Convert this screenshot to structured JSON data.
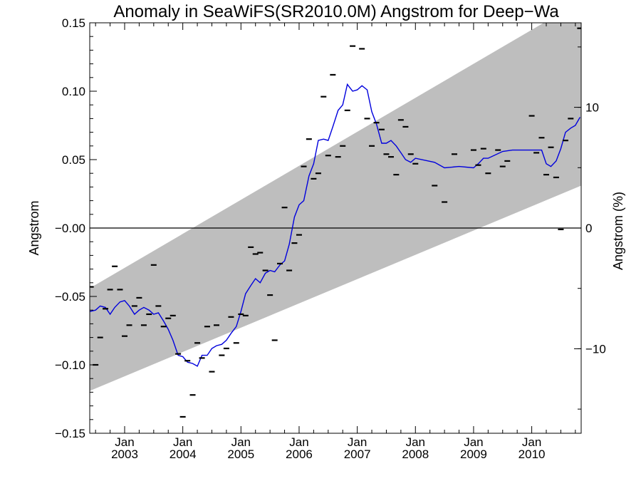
{
  "chart_data": {
    "type": "scatter",
    "title": "Anomaly in SeaWiFS(SR2010.0M) Angstrom for Deep−Wa",
    "ylabel": "Angstrom",
    "y2label": "Angstrom (%)",
    "xlim": [
      2002.4,
      2010.85
    ],
    "ylim": [
      -0.15,
      0.15
    ],
    "y2lim": [
      -17,
      17
    ],
    "yticks": [
      {
        "v": 0.15,
        "label": "0.15"
      },
      {
        "v": 0.1,
        "label": "0.10"
      },
      {
        "v": 0.05,
        "label": "0.05"
      },
      {
        "v": 0.0,
        "label": "−0.00"
      },
      {
        "v": -0.05,
        "label": "−0.05"
      },
      {
        "v": -0.1,
        "label": "−0.10"
      },
      {
        "v": -0.15,
        "label": "−0.15"
      }
    ],
    "y2ticks": [
      {
        "v": 10,
        "label": "10"
      },
      {
        "v": 0,
        "label": "0"
      },
      {
        "v": -10,
        "label": "−10"
      }
    ],
    "xticks": [
      {
        "v": 2003.0,
        "month": "Jan",
        "year": "2003"
      },
      {
        "v": 2004.0,
        "month": "Jan",
        "year": "2004"
      },
      {
        "v": 2005.0,
        "month": "Jan",
        "year": "2005"
      },
      {
        "v": 2006.0,
        "month": "Jan",
        "year": "2006"
      },
      {
        "v": 2007.0,
        "month": "Jan",
        "year": "2007"
      },
      {
        "v": 2008.0,
        "month": "Jan",
        "year": "2008"
      },
      {
        "v": 2009.0,
        "month": "Jan",
        "year": "2009"
      },
      {
        "v": 2010.0,
        "month": "Jan",
        "year": "2010"
      }
    ],
    "band": {
      "upper": [
        [
          2002.4,
          -0.044
        ],
        [
          2010.85,
          0.166
        ]
      ],
      "lower": [
        [
          2002.4,
          -0.119
        ],
        [
          2010.85,
          0.031
        ]
      ],
      "color": "#bebebe"
    },
    "zero_line": 0.0,
    "series": [
      {
        "kind": "points",
        "color": "#000000",
        "points": [
          [
            2002.42,
            -0.043
          ],
          [
            2002.5,
            -0.1
          ],
          [
            2002.58,
            -0.08
          ],
          [
            2002.67,
            -0.059
          ],
          [
            2002.75,
            -0.045
          ],
          [
            2002.83,
            -0.028
          ],
          [
            2002.92,
            -0.045
          ],
          [
            2003.0,
            -0.079
          ],
          [
            2003.08,
            -0.071
          ],
          [
            2003.17,
            -0.057
          ],
          [
            2003.25,
            -0.051
          ],
          [
            2003.33,
            -0.071
          ],
          [
            2003.42,
            -0.063
          ],
          [
            2003.5,
            -0.027
          ],
          [
            2003.58,
            -0.057
          ],
          [
            2003.67,
            -0.072
          ],
          [
            2003.75,
            -0.066
          ],
          [
            2003.83,
            -0.064
          ],
          [
            2003.92,
            -0.092
          ],
          [
            2004.0,
            -0.138
          ],
          [
            2004.08,
            -0.097
          ],
          [
            2004.17,
            -0.122
          ],
          [
            2004.25,
            -0.084
          ],
          [
            2004.33,
            -0.095
          ],
          [
            2004.42,
            -0.072
          ],
          [
            2004.5,
            -0.105
          ],
          [
            2004.58,
            -0.071
          ],
          [
            2004.67,
            -0.093
          ],
          [
            2004.75,
            -0.088
          ],
          [
            2004.83,
            -0.065
          ],
          [
            2004.92,
            -0.084
          ],
          [
            2005.0,
            -0.063
          ],
          [
            2005.08,
            -0.064
          ],
          [
            2005.17,
            -0.014
          ],
          [
            2005.25,
            -0.019
          ],
          [
            2005.33,
            -0.018
          ],
          [
            2005.42,
            -0.031
          ],
          [
            2005.5,
            -0.049
          ],
          [
            2005.58,
            -0.082
          ],
          [
            2005.67,
            -0.026
          ],
          [
            2005.75,
            0.015
          ],
          [
            2005.83,
            -0.031
          ],
          [
            2005.92,
            -0.011
          ],
          [
            2006.0,
            -0.005
          ],
          [
            2006.08,
            0.045
          ],
          [
            2006.17,
            0.065
          ],
          [
            2006.25,
            0.036
          ],
          [
            2006.33,
            0.04
          ],
          [
            2006.42,
            0.096
          ],
          [
            2006.5,
            0.053
          ],
          [
            2006.58,
            0.112
          ],
          [
            2006.67,
            0.052
          ],
          [
            2006.75,
            0.06
          ],
          [
            2006.83,
            0.086
          ],
          [
            2006.92,
            0.133
          ],
          [
            2007.08,
            0.131
          ],
          [
            2007.17,
            0.08
          ],
          [
            2007.25,
            0.06
          ],
          [
            2007.33,
            0.077
          ],
          [
            2007.42,
            0.072
          ],
          [
            2007.5,
            0.054
          ],
          [
            2007.58,
            0.052
          ],
          [
            2007.67,
            0.039
          ],
          [
            2007.75,
            0.079
          ],
          [
            2007.83,
            0.074
          ],
          [
            2007.92,
            0.054
          ],
          [
            2008.0,
            0.047
          ],
          [
            2008.33,
            0.031
          ],
          [
            2008.5,
            0.019
          ],
          [
            2008.67,
            0.054
          ],
          [
            2009.0,
            0.057
          ],
          [
            2009.08,
            0.046
          ],
          [
            2009.17,
            0.058
          ],
          [
            2009.25,
            0.04
          ],
          [
            2009.42,
            0.057
          ],
          [
            2009.5,
            0.045
          ],
          [
            2009.58,
            0.049
          ],
          [
            2010.0,
            0.082
          ],
          [
            2010.08,
            0.055
          ],
          [
            2010.17,
            0.066
          ],
          [
            2010.25,
            0.039
          ],
          [
            2010.33,
            0.059
          ],
          [
            2010.42,
            0.037
          ],
          [
            2010.5,
            -0.001
          ],
          [
            2010.58,
            0.064
          ],
          [
            2010.67,
            0.08
          ],
          [
            2010.83,
            0.146
          ]
        ]
      },
      {
        "kind": "line",
        "color": "#0000dd",
        "points": [
          [
            2002.4,
            -0.061
          ],
          [
            2002.5,
            -0.06
          ],
          [
            2002.58,
            -0.057
          ],
          [
            2002.67,
            -0.058
          ],
          [
            2002.75,
            -0.063
          ],
          [
            2002.83,
            -0.058
          ],
          [
            2002.92,
            -0.054
          ],
          [
            2003.0,
            -0.053
          ],
          [
            2003.08,
            -0.057
          ],
          [
            2003.17,
            -0.063
          ],
          [
            2003.25,
            -0.06
          ],
          [
            2003.33,
            -0.058
          ],
          [
            2003.42,
            -0.06
          ],
          [
            2003.5,
            -0.063
          ],
          [
            2003.58,
            -0.062
          ],
          [
            2003.67,
            -0.068
          ],
          [
            2003.75,
            -0.074
          ],
          [
            2003.83,
            -0.082
          ],
          [
            2003.92,
            -0.093
          ],
          [
            2004.0,
            -0.094
          ],
          [
            2004.08,
            -0.098
          ],
          [
            2004.17,
            -0.099
          ],
          [
            2004.25,
            -0.101
          ],
          [
            2004.33,
            -0.093
          ],
          [
            2004.42,
            -0.093
          ],
          [
            2004.5,
            -0.088
          ],
          [
            2004.58,
            -0.086
          ],
          [
            2004.67,
            -0.085
          ],
          [
            2004.75,
            -0.082
          ],
          [
            2004.83,
            -0.077
          ],
          [
            2004.92,
            -0.072
          ],
          [
            2005.0,
            -0.061
          ],
          [
            2005.08,
            -0.048
          ],
          [
            2005.17,
            -0.042
          ],
          [
            2005.25,
            -0.037
          ],
          [
            2005.33,
            -0.04
          ],
          [
            2005.42,
            -0.033
          ],
          [
            2005.5,
            -0.031
          ],
          [
            2005.58,
            -0.032
          ],
          [
            2005.67,
            -0.027
          ],
          [
            2005.75,
            -0.024
          ],
          [
            2005.83,
            -0.012
          ],
          [
            2005.92,
            0.008
          ],
          [
            2006.0,
            0.017
          ],
          [
            2006.08,
            0.02
          ],
          [
            2006.17,
            0.038
          ],
          [
            2006.25,
            0.047
          ],
          [
            2006.33,
            0.064
          ],
          [
            2006.42,
            0.065
          ],
          [
            2006.5,
            0.064
          ],
          [
            2006.58,
            0.074
          ],
          [
            2006.67,
            0.086
          ],
          [
            2006.75,
            0.09
          ],
          [
            2006.83,
            0.105
          ],
          [
            2006.92,
            0.1
          ],
          [
            2007.0,
            0.101
          ],
          [
            2007.08,
            0.104
          ],
          [
            2007.17,
            0.101
          ],
          [
            2007.25,
            0.085
          ],
          [
            2007.33,
            0.076
          ],
          [
            2007.42,
            0.062
          ],
          [
            2007.5,
            0.062
          ],
          [
            2007.58,
            0.064
          ],
          [
            2007.67,
            0.06
          ],
          [
            2007.75,
            0.055
          ],
          [
            2007.83,
            0.05
          ],
          [
            2007.92,
            0.048
          ],
          [
            2008.0,
            0.051
          ],
          [
            2008.33,
            0.048
          ],
          [
            2008.5,
            0.044
          ],
          [
            2008.75,
            0.045
          ],
          [
            2009.0,
            0.044
          ],
          [
            2009.08,
            0.047
          ],
          [
            2009.17,
            0.051
          ],
          [
            2009.25,
            0.051
          ],
          [
            2009.5,
            0.056
          ],
          [
            2009.67,
            0.057
          ],
          [
            2010.0,
            0.057
          ],
          [
            2010.17,
            0.057
          ],
          [
            2010.25,
            0.047
          ],
          [
            2010.33,
            0.045
          ],
          [
            2010.42,
            0.049
          ],
          [
            2010.5,
            0.058
          ],
          [
            2010.58,
            0.07
          ],
          [
            2010.67,
            0.073
          ],
          [
            2010.75,
            0.075
          ],
          [
            2010.83,
            0.081
          ]
        ]
      }
    ]
  }
}
